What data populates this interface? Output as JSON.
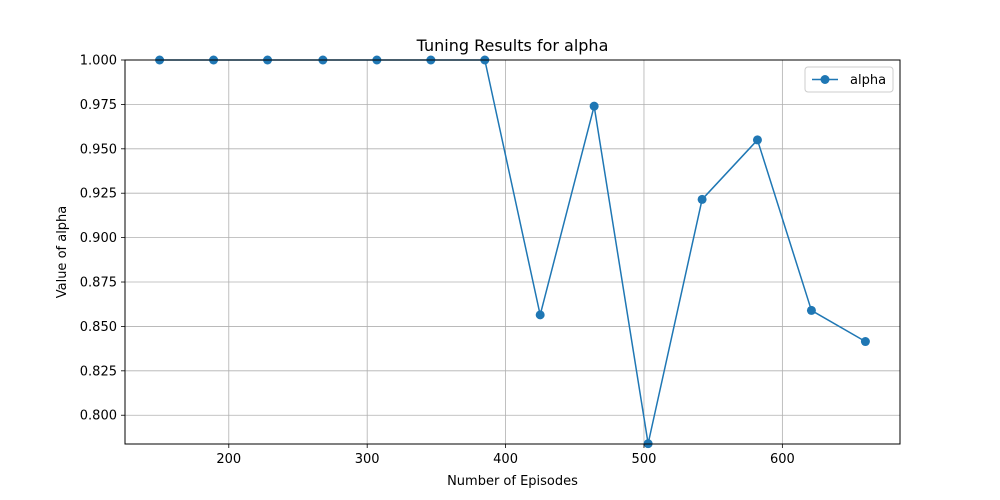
{
  "chart_data": {
    "type": "line",
    "title": "Tuning Results for alpha",
    "xlabel": "Number of Episodes",
    "ylabel": "Value of alpha",
    "xlim": [
      125,
      685
    ],
    "ylim": [
      0.7838,
      1.0
    ],
    "xticks": [
      200,
      300,
      400,
      500,
      600
    ],
    "yticks": [
      0.8,
      0.825,
      0.85,
      0.875,
      0.9,
      0.925,
      0.95,
      0.975,
      1.0
    ],
    "ytick_labels": [
      "0.800",
      "0.825",
      "0.850",
      "0.875",
      "0.900",
      "0.925",
      "0.950",
      "0.975",
      "1.000"
    ],
    "grid": true,
    "legend": "top-right",
    "series": [
      {
        "name": "alpha",
        "color": "#1f77b4",
        "marker": "circle",
        "x": [
          150,
          189,
          228,
          268,
          307,
          346,
          385,
          425,
          464,
          503,
          542,
          582,
          621,
          660
        ],
        "y": [
          1.0,
          1.0,
          1.0,
          1.0,
          1.0,
          1.0,
          1.0,
          0.8565,
          0.974,
          0.784,
          0.9215,
          0.955,
          0.859,
          0.8415
        ]
      }
    ]
  }
}
